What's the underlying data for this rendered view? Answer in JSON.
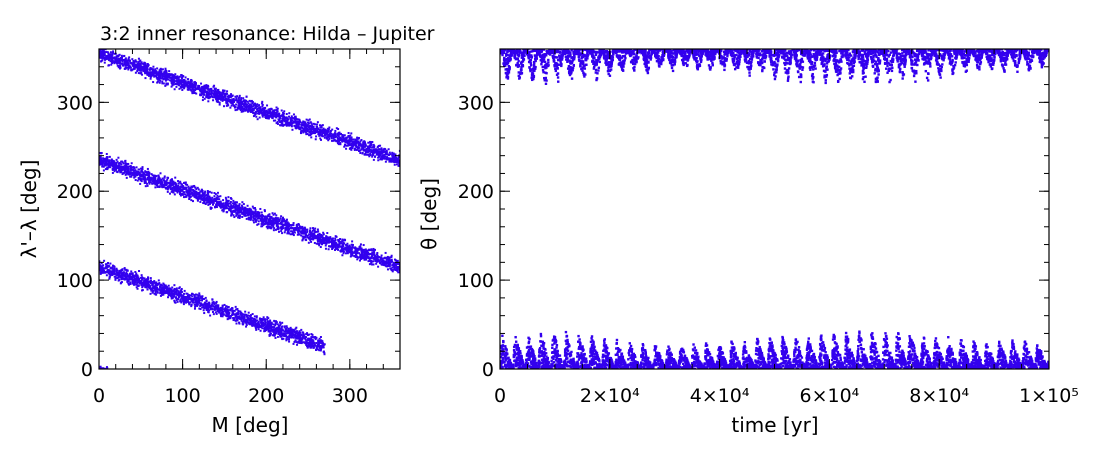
{
  "title": "3:2 inner resonance: Hilda – Jupiter",
  "colors": {
    "points": "#3300ee",
    "axes": "#000000",
    "background": "#ffffff"
  },
  "chart_data": [
    {
      "type": "scatter",
      "xlabel": "M [deg]",
      "ylabel": "λ'–λ [deg]",
      "xlim": [
        0,
        360
      ],
      "ylim": [
        0,
        360
      ],
      "xticks": [
        "0",
        "100",
        "200",
        "300"
      ],
      "yticks": [
        "0",
        "100",
        "200",
        "300"
      ],
      "grid": false,
      "series": [
        {
          "points": [
            [
              0,
              355
            ],
            [
              120,
              315
            ],
            [
              240,
              275
            ],
            [
              360,
              235
            ]
          ],
          "band_width_deg": 24
        },
        {
          "points": [
            [
              0,
              235
            ],
            [
              120,
              195
            ],
            [
              240,
              155
            ],
            [
              360,
              115
            ]
          ],
          "band_width_deg": 24
        },
        {
          "points": [
            [
              0,
              115
            ],
            [
              120,
              75
            ],
            [
              240,
              35
            ],
            [
              270,
              25
            ]
          ],
          "band_width_deg": 24
        },
        {
          "points": [
            [
              0,
              0
            ],
            [
              30,
              -10
            ]
          ],
          "band_width_deg": 12
        }
      ]
    },
    {
      "type": "scatter",
      "xlabel": "time [yr]",
      "ylabel": "θ [deg]",
      "xlim": [
        0,
        100000
      ],
      "ylim": [
        0,
        360
      ],
      "xticks": [
        "0",
        "2×10⁴",
        "4×10⁴",
        "6×10⁴",
        "8×10⁴",
        "1×10⁵"
      ],
      "yticks": [
        "0",
        "100",
        "200",
        "300"
      ],
      "grid": false,
      "libration_period_yr": 2320,
      "lower_amplitude_envelope_deg": [
        [
          0,
          38
        ],
        [
          8000,
          45
        ],
        [
          16000,
          40
        ],
        [
          24000,
          30
        ],
        [
          32000,
          28
        ],
        [
          40000,
          30
        ],
        [
          48000,
          36
        ],
        [
          56000,
          40
        ],
        [
          64000,
          44
        ],
        [
          72000,
          46
        ],
        [
          80000,
          38
        ],
        [
          88000,
          32
        ],
        [
          96000,
          36
        ],
        [
          100000,
          28
        ]
      ],
      "upper_minimum_envelope_deg": [
        [
          0,
          322
        ],
        [
          8000,
          318
        ],
        [
          16000,
          322
        ],
        [
          24000,
          330
        ],
        [
          32000,
          334
        ],
        [
          40000,
          332
        ],
        [
          48000,
          326
        ],
        [
          56000,
          320
        ],
        [
          64000,
          318
        ],
        [
          72000,
          316
        ],
        [
          80000,
          326
        ],
        [
          88000,
          334
        ],
        [
          96000,
          332
        ],
        [
          100000,
          340
        ]
      ]
    }
  ]
}
